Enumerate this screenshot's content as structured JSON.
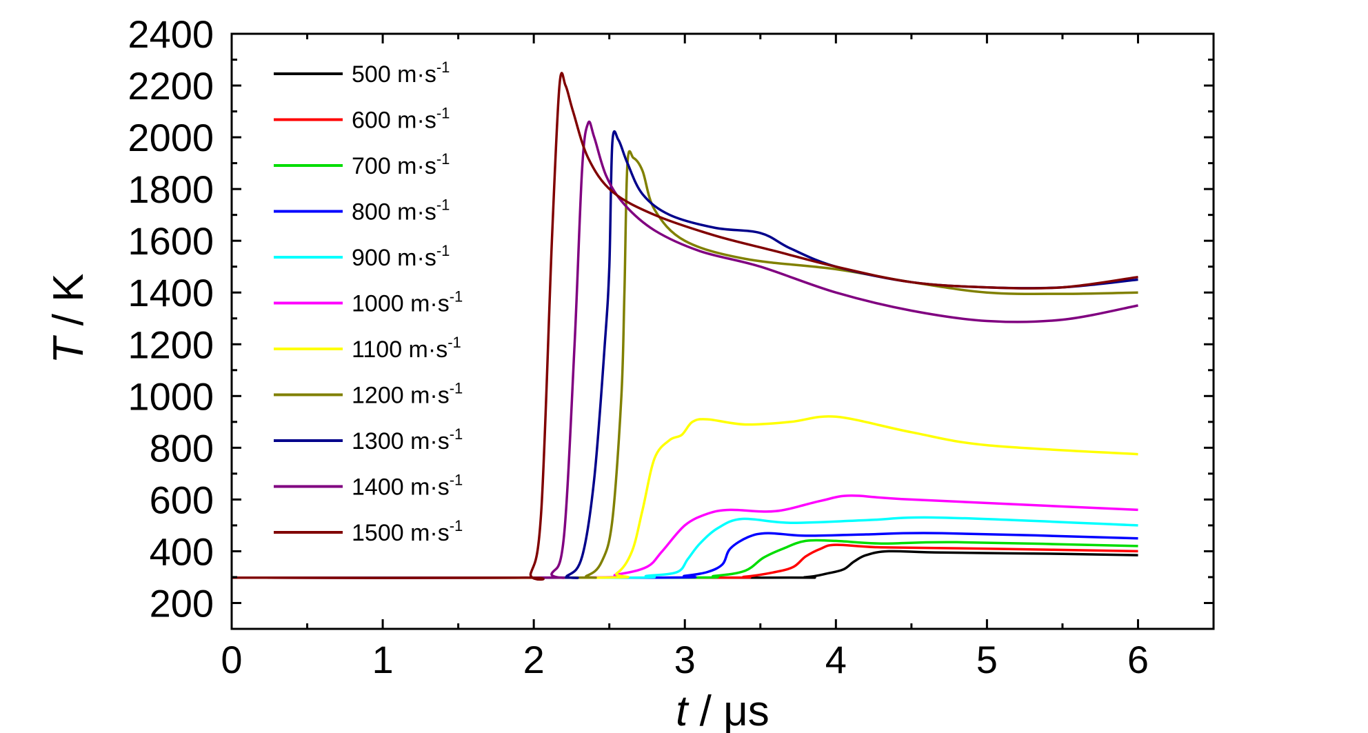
{
  "chart_data": {
    "type": "line",
    "title": "",
    "xlabel": {
      "italic": "t",
      "rest": " / μs"
    },
    "ylabel": {
      "italic": "T",
      "rest": " / K"
    },
    "xlim": [
      0,
      6.5
    ],
    "ylim": [
      100,
      2400
    ],
    "xticks": [
      "0",
      "1",
      "2",
      "3",
      "4",
      "5",
      "6"
    ],
    "yticks": [
      "200",
      "400",
      "600",
      "800",
      "1000",
      "1200",
      "1400",
      "1600",
      "1800",
      "2000",
      "2200",
      "2400"
    ],
    "grid": false,
    "legend_position": "top-left",
    "series": [
      {
        "name": "500 m·s",
        "sup": "-1",
        "color": "#000000",
        "points": [
          [
            0,
            298
          ],
          [
            3.5,
            298
          ],
          [
            3.8,
            300
          ],
          [
            3.95,
            315
          ],
          [
            4.05,
            330
          ],
          [
            4.12,
            360
          ],
          [
            4.2,
            385
          ],
          [
            4.35,
            400
          ],
          [
            4.7,
            395
          ],
          [
            5.5,
            390
          ],
          [
            6,
            385
          ]
        ]
      },
      {
        "name": "600 m·s",
        "sup": "-1",
        "color": "#ff0000",
        "points": [
          [
            0,
            298
          ],
          [
            3.1,
            298
          ],
          [
            3.4,
            302
          ],
          [
            3.6,
            320
          ],
          [
            3.72,
            340
          ],
          [
            3.8,
            380
          ],
          [
            3.9,
            410
          ],
          [
            4.0,
            425
          ],
          [
            4.3,
            415
          ],
          [
            5,
            410
          ],
          [
            6,
            400
          ]
        ]
      },
      {
        "name": "700 m·s",
        "sup": "-1",
        "color": "#00dd00",
        "points": [
          [
            0,
            298
          ],
          [
            2.9,
            298
          ],
          [
            3.2,
            305
          ],
          [
            3.4,
            325
          ],
          [
            3.52,
            375
          ],
          [
            3.65,
            410
          ],
          [
            3.8,
            440
          ],
          [
            4.0,
            440
          ],
          [
            4.3,
            430
          ],
          [
            4.8,
            435
          ],
          [
            6,
            420
          ]
        ]
      },
      {
        "name": "800 m·s",
        "sup": "-1",
        "color": "#0000ff",
        "points": [
          [
            0,
            298
          ],
          [
            2.8,
            298
          ],
          [
            3.0,
            305
          ],
          [
            3.15,
            320
          ],
          [
            3.25,
            350
          ],
          [
            3.3,
            410
          ],
          [
            3.42,
            455
          ],
          [
            3.55,
            470
          ],
          [
            3.8,
            460
          ],
          [
            4.2,
            465
          ],
          [
            4.7,
            470
          ],
          [
            6,
            450
          ]
        ]
      },
      {
        "name": "900 m·s",
        "sup": "-1",
        "color": "#00ffff",
        "points": [
          [
            0,
            298
          ],
          [
            2.55,
            298
          ],
          [
            2.75,
            305
          ],
          [
            2.95,
            320
          ],
          [
            3.02,
            370
          ],
          [
            3.1,
            430
          ],
          [
            3.22,
            490
          ],
          [
            3.38,
            525
          ],
          [
            3.7,
            510
          ],
          [
            4.2,
            520
          ],
          [
            4.7,
            530
          ],
          [
            6,
            500
          ]
        ]
      },
      {
        "name": "1000 m·s",
        "sup": "-1",
        "color": "#ff00ff",
        "points": [
          [
            0,
            298
          ],
          [
            2.3,
            298
          ],
          [
            2.55,
            310
          ],
          [
            2.75,
            340
          ],
          [
            2.85,
            400
          ],
          [
            3.0,
            500
          ],
          [
            3.15,
            545
          ],
          [
            3.3,
            560
          ],
          [
            3.6,
            555
          ],
          [
            3.9,
            595
          ],
          [
            4.1,
            615
          ],
          [
            4.5,
            600
          ],
          [
            6,
            560
          ]
        ]
      },
      {
        "name": "1100 m·s",
        "sup": "-1",
        "color": "#ffff00",
        "points": [
          [
            0,
            298
          ],
          [
            2.4,
            298
          ],
          [
            2.55,
            315
          ],
          [
            2.65,
            400
          ],
          [
            2.72,
            560
          ],
          [
            2.8,
            760
          ],
          [
            2.9,
            830
          ],
          [
            2.98,
            850
          ],
          [
            3.05,
            900
          ],
          [
            3.15,
            910
          ],
          [
            3.4,
            890
          ],
          [
            3.7,
            900
          ],
          [
            4.0,
            920
          ],
          [
            4.5,
            860
          ],
          [
            5,
            810
          ],
          [
            6,
            775
          ]
        ]
      },
      {
        "name": "1200 m·s",
        "sup": "-1",
        "color": "#808000",
        "points": [
          [
            0,
            298
          ],
          [
            2.2,
            298
          ],
          [
            2.35,
            305
          ],
          [
            2.45,
            360
          ],
          [
            2.52,
            520
          ],
          [
            2.58,
            1000
          ],
          [
            2.6,
            1400
          ],
          [
            2.62,
            1900
          ],
          [
            2.66,
            1920
          ],
          [
            2.72,
            1870
          ],
          [
            2.8,
            1720
          ],
          [
            3.0,
            1600
          ],
          [
            3.4,
            1530
          ],
          [
            4.0,
            1490
          ],
          [
            4.5,
            1440
          ],
          [
            5,
            1400
          ],
          [
            5.5,
            1395
          ],
          [
            6,
            1400
          ]
        ]
      },
      {
        "name": "1300 m·s",
        "sup": "-1",
        "color": "#00008b",
        "points": [
          [
            0,
            298
          ],
          [
            2.1,
            298
          ],
          [
            2.22,
            305
          ],
          [
            2.32,
            380
          ],
          [
            2.4,
            680
          ],
          [
            2.47,
            1200
          ],
          [
            2.5,
            1500
          ],
          [
            2.52,
            1980
          ],
          [
            2.56,
            1990
          ],
          [
            2.62,
            1900
          ],
          [
            2.72,
            1780
          ],
          [
            2.9,
            1700
          ],
          [
            3.2,
            1650
          ],
          [
            3.5,
            1630
          ],
          [
            3.7,
            1570
          ],
          [
            4.0,
            1500
          ],
          [
            4.5,
            1440
          ],
          [
            5,
            1420
          ],
          [
            5.5,
            1420
          ],
          [
            6,
            1450
          ]
        ]
      },
      {
        "name": "1400 m·s",
        "sup": "-1",
        "color": "#800080",
        "points": [
          [
            0,
            298
          ],
          [
            2.02,
            298
          ],
          [
            2.12,
            315
          ],
          [
            2.2,
            460
          ],
          [
            2.27,
            1200
          ],
          [
            2.32,
            1880
          ],
          [
            2.36,
            2055
          ],
          [
            2.4,
            2000
          ],
          [
            2.48,
            1850
          ],
          [
            2.6,
            1740
          ],
          [
            2.8,
            1640
          ],
          [
            3.1,
            1560
          ],
          [
            3.5,
            1500
          ],
          [
            4.0,
            1400
          ],
          [
            4.5,
            1330
          ],
          [
            5,
            1290
          ],
          [
            5.5,
            1295
          ],
          [
            6,
            1350
          ]
        ]
      },
      {
        "name": "1500 m·s",
        "sup": "-1",
        "color": "#800000",
        "points": [
          [
            0,
            298
          ],
          [
            1.9,
            298
          ],
          [
            1.98,
            315
          ],
          [
            2.05,
            560
          ],
          [
            2.12,
            1600
          ],
          [
            2.17,
            2200
          ],
          [
            2.21,
            2200
          ],
          [
            2.26,
            2100
          ],
          [
            2.36,
            1920
          ],
          [
            2.52,
            1790
          ],
          [
            2.8,
            1700
          ],
          [
            3.2,
            1620
          ],
          [
            3.6,
            1560
          ],
          [
            4.0,
            1500
          ],
          [
            4.5,
            1440
          ],
          [
            5,
            1420
          ],
          [
            5.5,
            1420
          ],
          [
            6,
            1460
          ]
        ]
      }
    ]
  }
}
